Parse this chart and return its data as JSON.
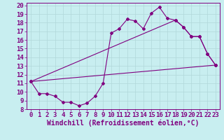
{
  "xlabel": "Windchill (Refroidissement éolien,°C)",
  "bg_color": "#c8eef0",
  "line_color": "#800080",
  "xlim": [
    -0.5,
    23.5
  ],
  "ylim": [
    8,
    20.3
  ],
  "xticks": [
    0,
    1,
    2,
    3,
    4,
    5,
    6,
    7,
    8,
    9,
    10,
    11,
    12,
    13,
    14,
    15,
    16,
    17,
    18,
    19,
    20,
    21,
    22,
    23
  ],
  "yticks": [
    8,
    9,
    10,
    11,
    12,
    13,
    14,
    15,
    16,
    17,
    18,
    19,
    20
  ],
  "line1_x": [
    0,
    1,
    2,
    3,
    4,
    5,
    6,
    7,
    8,
    9,
    10,
    11,
    12,
    13,
    14,
    15,
    16,
    17,
    18,
    19,
    20,
    21,
    22,
    23
  ],
  "line1_y": [
    11.2,
    9.8,
    9.8,
    9.5,
    8.8,
    8.8,
    8.4,
    8.7,
    9.5,
    11.0,
    16.8,
    17.3,
    18.4,
    18.2,
    17.3,
    19.1,
    19.8,
    18.5,
    18.3,
    17.5,
    16.4,
    16.4,
    14.4,
    13.1
  ],
  "line2_x": [
    0,
    18,
    19,
    20,
    21,
    22,
    23
  ],
  "line2_y": [
    11.2,
    18.3,
    17.5,
    16.4,
    16.4,
    14.4,
    13.1
  ],
  "line3_x": [
    0,
    23
  ],
  "line3_y": [
    11.2,
    13.1
  ],
  "grid_color": "#b0d8da",
  "xlabel_color": "#800080",
  "tick_color": "#800080",
  "font_size_tick": 6.5,
  "font_size_xlabel": 7.0
}
